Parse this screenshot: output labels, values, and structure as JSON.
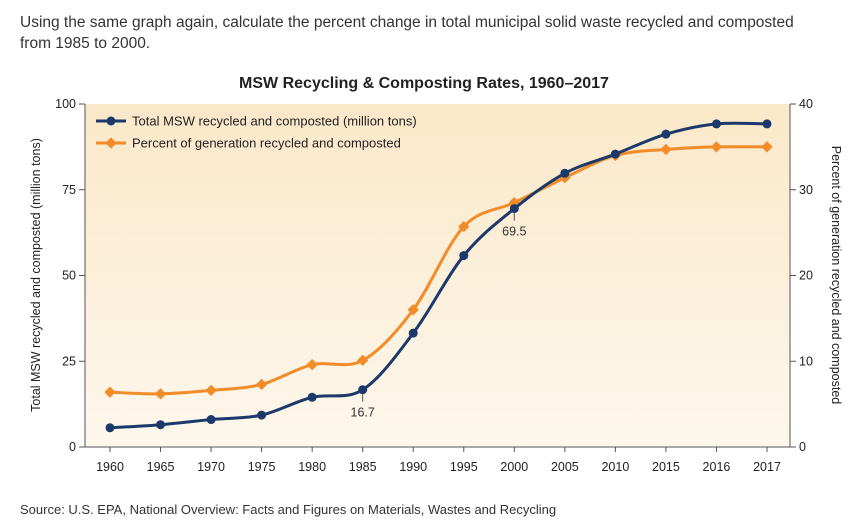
{
  "question": "Using the same graph again, calculate the percent change in total municipal solid waste recycled and composted from 1985 to 2000.",
  "source": "Source: U.S. EPA, National Overview: Facts and Figures on Materials, Wastes and Recycling",
  "chart_data": {
    "type": "line",
    "title": "MSW Recycling & Composting Rates, 1960–2017",
    "categories": [
      "1960",
      "1965",
      "1970",
      "1975",
      "1980",
      "1985",
      "1990",
      "1995",
      "2000",
      "2005",
      "2010",
      "2015",
      "2016",
      "2017"
    ],
    "ylabel": "Total MSW recycled and composted (million tons)",
    "ylabel_right": "Percent of generation recycled and composted",
    "ylim": [
      0,
      100
    ],
    "ylim_right": [
      0,
      40
    ],
    "yticks": [
      "0",
      "25",
      "50",
      "75",
      "100"
    ],
    "yticks_right": [
      "0",
      "10",
      "20",
      "30",
      "40"
    ],
    "grid": false,
    "legend_position": "top-left",
    "colors": {
      "background_top": "#fbe8c9",
      "background_bottom": "#fdf7ec",
      "tons": "#1b3a6b",
      "percent": "#f28c28"
    },
    "series": [
      {
        "name": "Total MSW recycled and composted (million tons)",
        "axis": "left",
        "values": [
          5.6,
          6.5,
          8.0,
          9.3,
          14.5,
          16.7,
          33.2,
          55.8,
          69.5,
          79.8,
          85.4,
          91.2,
          94.2,
          94.2
        ]
      },
      {
        "name": "Percent of generation recycled and composted",
        "axis": "right",
        "values": [
          6.4,
          6.2,
          6.6,
          7.3,
          9.6,
          10.1,
          16.0,
          25.7,
          28.5,
          31.4,
          34.0,
          34.7,
          35.0,
          35.0
        ]
      }
    ],
    "annotations": [
      {
        "category": "1985",
        "value": "16.7"
      },
      {
        "category": "2000",
        "value": "69.5"
      }
    ]
  }
}
